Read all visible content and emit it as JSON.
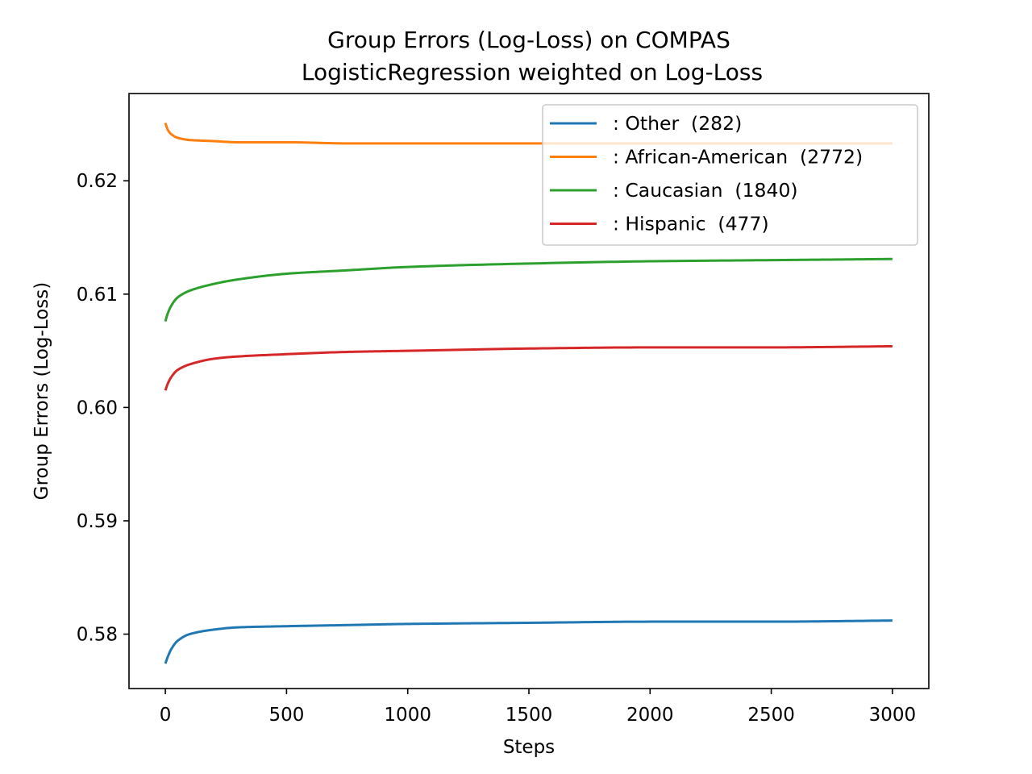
{
  "chart_data": {
    "type": "line",
    "title": "Group Errors (Log-Loss) on COMPAS",
    "subtitle": "LogisticRegression weighted on Log-Loss",
    "xlabel": "Steps",
    "ylabel": "Group Errors (Log-Loss)",
    "xlim": [
      -150,
      3150
    ],
    "ylim": [
      0.5752,
      0.6277
    ],
    "xticks": [
      0,
      500,
      1000,
      1500,
      2000,
      2500,
      3000
    ],
    "xtick_labels": [
      "0",
      "500",
      "1000",
      "1500",
      "2000",
      "2500",
      "3000"
    ],
    "yticks": [
      0.58,
      0.59,
      0.6,
      0.61,
      0.62
    ],
    "ytick_labels": [
      "0.58",
      "0.59",
      "0.60",
      "0.61",
      "0.62"
    ],
    "grid": false,
    "legend_position": "top-right",
    "series": [
      {
        "name": ": Other  (282)",
        "color": "#1f77b4",
        "x": [
          0,
          10,
          25,
          50,
          100,
          200,
          300,
          500,
          750,
          1000,
          1500,
          2000,
          2500,
          3000
        ],
        "y": [
          0.5774,
          0.578,
          0.5787,
          0.5794,
          0.58,
          0.5804,
          0.5806,
          0.5807,
          0.5808,
          0.5809,
          0.581,
          0.5811,
          0.5811,
          0.5812
        ]
      },
      {
        "name": ": African-American  (2772)",
        "color": "#ff7f0e",
        "x": [
          0,
          10,
          25,
          50,
          100,
          200,
          300,
          500,
          750,
          1000,
          1500,
          2000,
          2500,
          3000
        ],
        "y": [
          0.6251,
          0.6245,
          0.6241,
          0.6238,
          0.6236,
          0.6235,
          0.6234,
          0.6234,
          0.6233,
          0.6233,
          0.6233,
          0.6233,
          0.6233,
          0.6233
        ]
      },
      {
        "name": ": Caucasian  (1840)",
        "color": "#2ca02c",
        "x": [
          0,
          10,
          25,
          50,
          100,
          200,
          300,
          500,
          750,
          1000,
          1500,
          2000,
          2500,
          3000
        ],
        "y": [
          0.6076,
          0.6083,
          0.609,
          0.6097,
          0.6103,
          0.6109,
          0.6113,
          0.6118,
          0.6121,
          0.6124,
          0.6127,
          0.6129,
          0.613,
          0.6131
        ]
      },
      {
        "name": ": Hispanic  (477)",
        "color": "#d62728",
        "x": [
          0,
          10,
          25,
          50,
          100,
          200,
          300,
          500,
          750,
          1000,
          1500,
          2000,
          2500,
          3000
        ],
        "y": [
          0.6015,
          0.6021,
          0.6027,
          0.6033,
          0.6038,
          0.6043,
          0.6045,
          0.6047,
          0.6049,
          0.605,
          0.6052,
          0.6053,
          0.6053,
          0.6054
        ]
      }
    ]
  }
}
